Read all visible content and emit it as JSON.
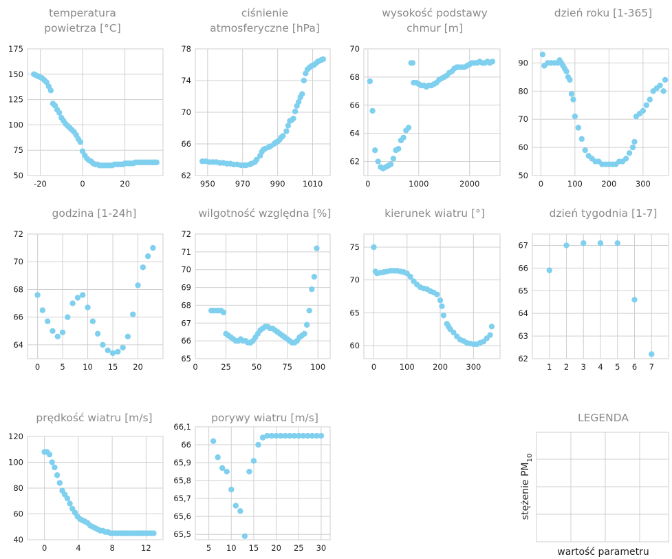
{
  "colors": {
    "point": "#7fcfee",
    "grid": "#cfcfcf",
    "title": "#8a8a8a",
    "text": "#1e1e1e"
  },
  "legend": {
    "title": "LEGENDA",
    "ylabel_main": "stężenie PM",
    "ylabel_sub": "10",
    "xlabel": "wartość parametru"
  },
  "chart_data": [
    {
      "type": "scatter",
      "title": [
        "temperatura",
        "powietrza [°C]"
      ],
      "xlim": [
        -26,
        38
      ],
      "ylim": [
        50,
        175
      ],
      "xticks": [
        -20,
        0,
        20
      ],
      "yticks": [
        50,
        75,
        100,
        125,
        150,
        175
      ],
      "xtick_labels": [
        "-20",
        "0",
        "20"
      ],
      "ytick_labels": [
        "50",
        "75",
        "100",
        "125",
        "150",
        "175"
      ],
      "x": [
        -23,
        -22,
        -21,
        -20,
        -19,
        -18,
        -17,
        -16,
        -15,
        -14,
        -13,
        -12,
        -11,
        -10,
        -9,
        -8,
        -7,
        -6,
        -5,
        -4,
        -3,
        -2,
        -1,
        0,
        1,
        2,
        3,
        4,
        5,
        6,
        7,
        8,
        9,
        10,
        11,
        12,
        13,
        14,
        15,
        16,
        17,
        18,
        19,
        20,
        21,
        22,
        23,
        24,
        25,
        26,
        27,
        28,
        29,
        30,
        31,
        32,
        33,
        34,
        35
      ],
      "y": [
        150,
        149,
        148,
        147,
        146,
        144,
        142,
        138,
        134,
        121,
        119,
        115,
        112,
        107,
        104,
        101,
        99,
        97,
        95,
        93,
        90,
        86,
        83,
        74,
        70,
        67,
        65,
        64,
        62,
        61,
        61,
        60,
        60,
        60,
        60,
        60,
        60,
        60,
        61,
        61,
        61,
        61,
        61,
        62,
        62,
        62,
        62,
        62,
        63,
        63,
        63,
        63,
        63,
        63,
        63,
        63,
        63,
        63,
        63
      ]
    },
    {
      "type": "scatter",
      "title": [
        "ciśnienie",
        "atmosferyczne [hPa]"
      ],
      "xlim": [
        943,
        1020
      ],
      "ylim": [
        62,
        78
      ],
      "xticks": [
        950,
        970,
        990,
        1010
      ],
      "yticks": [
        62,
        66,
        70,
        74,
        78
      ],
      "xtick_labels": [
        "950",
        "970",
        "990",
        "1010"
      ],
      "ytick_labels": [
        "62",
        "66",
        "70",
        "74",
        "78"
      ],
      "x": [
        947,
        949,
        951,
        953,
        955,
        957,
        959,
        961,
        963,
        965,
        967,
        969,
        971,
        972,
        974,
        975,
        977,
        978,
        980,
        981,
        982,
        983,
        985,
        986,
        988,
        989,
        990,
        991,
        992,
        993,
        995,
        996,
        997,
        998,
        999,
        1000,
        1001,
        1002,
        1003,
        1004,
        1005,
        1006,
        1007,
        1008,
        1009,
        1010,
        1011,
        1012,
        1013,
        1014,
        1015,
        1016
      ],
      "y": [
        63.8,
        63.8,
        63.7,
        63.7,
        63.7,
        63.6,
        63.6,
        63.5,
        63.5,
        63.4,
        63.4,
        63.3,
        63.3,
        63.3,
        63.4,
        63.5,
        63.7,
        64.0,
        64.5,
        65.0,
        65.3,
        65.4,
        65.6,
        65.7,
        66.0,
        66.2,
        66.3,
        66.5,
        66.8,
        67.0,
        67.6,
        68.3,
        68.9,
        69.0,
        69.2,
        70.1,
        70.8,
        71.3,
        71.9,
        72.3,
        74.0,
        74.9,
        75.4,
        75.6,
        75.8,
        75.9,
        76.0,
        76.2,
        76.4,
        76.5,
        76.6,
        76.7
      ]
    },
    {
      "type": "scatter",
      "title": [
        "wysokość podstawy",
        "chmur [m]"
      ],
      "xlim": [
        -80,
        2600
      ],
      "ylim": [
        61,
        70
      ],
      "xticks": [
        0,
        1000,
        2000
      ],
      "yticks": [
        62,
        64,
        66,
        68,
        70
      ],
      "xtick_labels": [
        "0",
        "1000",
        "2000"
      ],
      "ytick_labels": [
        "62",
        "64",
        "66",
        "68",
        "70"
      ],
      "x": [
        40,
        90,
        140,
        200,
        250,
        300,
        350,
        400,
        450,
        500,
        550,
        600,
        650,
        700,
        750,
        800,
        850,
        880,
        900,
        950,
        1000,
        1050,
        1100,
        1150,
        1200,
        1250,
        1300,
        1350,
        1400,
        1450,
        1500,
        1550,
        1600,
        1650,
        1700,
        1750,
        1800,
        1850,
        1900,
        1950,
        2000,
        2050,
        2100,
        2150,
        2200,
        2250,
        2300,
        2350,
        2400,
        2450
      ],
      "y": [
        67.7,
        65.6,
        62.8,
        62.0,
        61.6,
        61.5,
        61.6,
        61.7,
        61.8,
        62.2,
        62.8,
        62.9,
        63.5,
        63.7,
        64.2,
        64.4,
        69.0,
        69.0,
        67.6,
        67.6,
        67.5,
        67.4,
        67.4,
        67.3,
        67.4,
        67.4,
        67.5,
        67.6,
        67.8,
        67.9,
        68.0,
        68.1,
        68.3,
        68.4,
        68.6,
        68.7,
        68.7,
        68.7,
        68.7,
        68.8,
        68.9,
        69.0,
        69.0,
        69.0,
        69.1,
        69.0,
        69.0,
        69.1,
        69.0,
        69.1
      ]
    },
    {
      "type": "scatter",
      "title": [
        "dzień roku [1-365]"
      ],
      "xlim": [
        -25,
        375
      ],
      "ylim": [
        50,
        95
      ],
      "xticks": [
        0,
        100,
        200,
        300
      ],
      "yticks": [
        50,
        60,
        70,
        80,
        90
      ],
      "xtick_labels": [
        "0",
        "100",
        "200",
        "300"
      ],
      "ytick_labels": [
        "50",
        "60",
        "70",
        "80",
        "90"
      ],
      "x": [
        5,
        10,
        20,
        30,
        40,
        50,
        55,
        60,
        65,
        70,
        75,
        80,
        85,
        90,
        95,
        100,
        110,
        120,
        130,
        140,
        150,
        160,
        170,
        180,
        190,
        200,
        210,
        220,
        230,
        240,
        250,
        260,
        270,
        275,
        280,
        290,
        300,
        310,
        320,
        330,
        340,
        350,
        360,
        365
      ],
      "y": [
        93,
        89,
        90,
        90,
        90,
        90,
        91,
        90,
        89,
        88,
        87,
        85,
        84,
        79,
        77,
        71,
        67,
        63,
        59,
        57,
        56,
        55,
        55,
        54,
        54,
        54,
        54,
        54,
        55,
        55,
        56,
        58,
        60,
        62,
        71,
        72,
        73,
        75,
        77,
        80,
        81,
        82,
        80,
        84
      ]
    },
    {
      "type": "scatter",
      "title": [
        "godzina [1-24h]"
      ],
      "xlim": [
        -2,
        25
      ],
      "ylim": [
        63,
        72
      ],
      "xticks": [
        0,
        5,
        10,
        15,
        20
      ],
      "yticks": [
        64,
        66,
        68,
        70,
        72
      ],
      "xtick_labels": [
        "0",
        "5",
        "10",
        "15",
        "20"
      ],
      "ytick_labels": [
        "64",
        "66",
        "68",
        "70",
        "72"
      ],
      "x": [
        0,
        1,
        2,
        3,
        4,
        5,
        6,
        7,
        8,
        9,
        10,
        11,
        12,
        13,
        14,
        15,
        16,
        17,
        18,
        19,
        20,
        21,
        22,
        23
      ],
      "y": [
        67.6,
        66.5,
        65.7,
        65.0,
        64.6,
        64.9,
        66.0,
        67.0,
        67.4,
        67.6,
        66.7,
        65.7,
        64.8,
        64.0,
        63.6,
        63.4,
        63.5,
        63.8,
        64.6,
        66.2,
        68.3,
        69.6,
        70.4,
        71.0
      ]
    },
    {
      "type": "scatter",
      "title": [
        "wilgotność względna [%]"
      ],
      "xlim": [
        0,
        110
      ],
      "ylim": [
        65,
        72
      ],
      "xticks": [
        0,
        25,
        50,
        75,
        100
      ],
      "yticks": [
        65,
        66,
        67,
        68,
        69,
        70,
        71,
        72
      ],
      "xtick_labels": [
        "0",
        "25",
        "50",
        "75",
        "100"
      ],
      "ytick_labels": [
        "65",
        "66",
        "67",
        "68",
        "69",
        "70",
        "71",
        "72"
      ],
      "x": [
        13,
        15,
        17,
        19,
        21,
        23,
        25,
        27,
        29,
        31,
        33,
        35,
        37,
        39,
        41,
        43,
        45,
        47,
        49,
        51,
        53,
        55,
        57,
        59,
        61,
        63,
        65,
        67,
        69,
        71,
        73,
        75,
        77,
        79,
        81,
        83,
        85,
        87,
        89,
        91,
        93,
        95,
        97,
        99
      ],
      "y": [
        67.7,
        67.7,
        67.7,
        67.7,
        67.7,
        67.6,
        66.4,
        66.3,
        66.2,
        66.1,
        66.0,
        66.0,
        66.1,
        66.0,
        66.0,
        65.9,
        65.9,
        66.0,
        66.2,
        66.4,
        66.6,
        66.7,
        66.8,
        66.8,
        66.7,
        66.7,
        66.6,
        66.5,
        66.4,
        66.3,
        66.2,
        66.1,
        66.0,
        65.9,
        65.9,
        66.0,
        66.2,
        66.3,
        66.4,
        66.9,
        67.7,
        68.9,
        69.6,
        71.2
      ]
    },
    {
      "type": "scatter",
      "title": [
        "kierunek wiatru [°]"
      ],
      "xlim": [
        -30,
        380
      ],
      "ylim": [
        58,
        77
      ],
      "xticks": [
        0,
        100,
        200,
        300
      ],
      "yticks": [
        60,
        65,
        70,
        75
      ],
      "xtick_labels": [
        "0",
        "100",
        "200",
        "300"
      ],
      "ytick_labels": [
        "60",
        "65",
        "70",
        "75"
      ],
      "x": [
        0,
        5,
        10,
        20,
        30,
        40,
        50,
        60,
        70,
        80,
        90,
        100,
        110,
        120,
        130,
        140,
        150,
        160,
        170,
        180,
        190,
        200,
        205,
        210,
        220,
        225,
        230,
        240,
        250,
        260,
        270,
        280,
        290,
        300,
        310,
        320,
        330,
        340,
        350,
        355
      ],
      "y": [
        75.0,
        71.3,
        71.0,
        71.1,
        71.2,
        71.3,
        71.4,
        71.4,
        71.4,
        71.3,
        71.2,
        71.0,
        70.5,
        69.8,
        69.3,
        68.9,
        68.7,
        68.6,
        68.3,
        68.1,
        67.8,
        66.9,
        66.0,
        64.6,
        63.3,
        62.9,
        62.5,
        62.0,
        61.4,
        60.9,
        60.7,
        60.4,
        60.3,
        60.2,
        60.2,
        60.4,
        60.6,
        61.1,
        61.6,
        62.9
      ]
    },
    {
      "type": "scatter",
      "title": [
        "dzień tygodnia [1-7]"
      ],
      "xlim": [
        0,
        8
      ],
      "ylim": [
        62,
        67.5
      ],
      "xticks": [
        1,
        2,
        3,
        4,
        5,
        6,
        7
      ],
      "yticks": [
        62,
        63,
        64,
        65,
        66,
        67
      ],
      "xtick_labels": [
        "1",
        "2",
        "3",
        "4",
        "5",
        "6",
        "7"
      ],
      "ytick_labels": [
        "62",
        "63",
        "64",
        "65",
        "66",
        "67"
      ],
      "x": [
        1,
        2,
        3,
        4,
        5,
        6,
        7
      ],
      "y": [
        65.9,
        67.0,
        67.1,
        67.1,
        67.1,
        64.6,
        62.2
      ]
    },
    {
      "type": "scatter",
      "title": [
        "prędkość wiatru [m/s]"
      ],
      "xlim": [
        -2,
        14
      ],
      "ylim": [
        40,
        120
      ],
      "xticks": [
        0,
        4,
        8,
        12
      ],
      "yticks": [
        40,
        60,
        80,
        100,
        120
      ],
      "xtick_labels": [
        "0",
        "4",
        "8",
        "12"
      ],
      "ytick_labels": [
        "40",
        "60",
        "80",
        "100",
        "120"
      ],
      "x": [
        0.0,
        0.3,
        0.6,
        0.9,
        1.2,
        1.5,
        1.8,
        2.1,
        2.4,
        2.7,
        3.0,
        3.3,
        3.6,
        3.9,
        4.2,
        4.5,
        4.8,
        5.1,
        5.4,
        5.7,
        6.0,
        6.3,
        6.6,
        6.9,
        7.2,
        7.5,
        7.8,
        8.1,
        8.4,
        8.7,
        9.0,
        9.3,
        9.6,
        9.9,
        10.2,
        10.5,
        10.8,
        11.1,
        11.4,
        11.7,
        12.0,
        12.3,
        12.6,
        12.9
      ],
      "y": [
        108,
        108,
        106,
        100,
        96,
        90,
        84,
        78,
        75,
        72,
        68,
        64,
        61,
        58,
        56,
        55,
        54,
        53,
        51,
        50,
        49,
        48,
        47,
        47,
        46,
        46,
        45,
        45,
        45,
        45,
        45,
        45,
        45,
        45,
        45,
        45,
        45,
        45,
        45,
        45,
        45,
        45,
        45,
        45
      ]
    },
    {
      "type": "scatter",
      "title": [
        "porywy wiatru [m/s]"
      ],
      "xlim": [
        2,
        32
      ],
      "ylim": [
        65.47,
        66.1
      ],
      "xticks": [
        5,
        10,
        15,
        20,
        25,
        30
      ],
      "yticks": [
        65.5,
        65.6,
        65.7,
        65.8,
        65.9,
        66.0,
        66.1
      ],
      "xtick_labels": [
        "5",
        "10",
        "15",
        "20",
        "25",
        "30"
      ],
      "ytick_labels": [
        "65,5",
        "65,6",
        "65,7",
        "65,8",
        "65,9",
        "66",
        "66,1"
      ],
      "x": [
        6,
        7,
        8,
        9,
        10,
        11,
        12,
        13,
        14,
        15,
        16,
        17,
        18,
        19,
        20,
        21,
        22,
        23,
        24,
        25,
        26,
        27,
        28,
        29,
        30
      ],
      "y": [
        66.02,
        65.93,
        65.87,
        65.85,
        65.75,
        65.66,
        65.63,
        65.49,
        65.85,
        65.91,
        66.0,
        66.04,
        66.05,
        66.05,
        66.05,
        66.05,
        66.05,
        66.05,
        66.05,
        66.05,
        66.05,
        66.05,
        66.05,
        66.05,
        66.05
      ]
    }
  ]
}
